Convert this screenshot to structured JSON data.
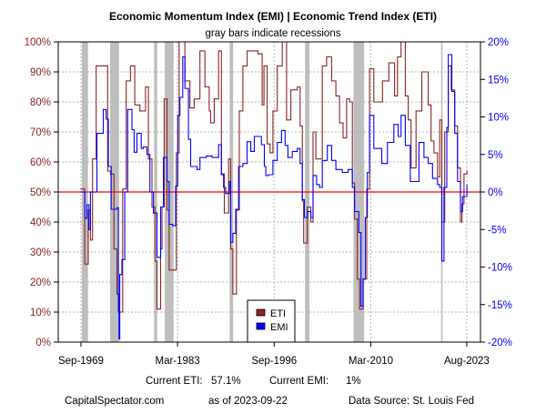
{
  "chart_data": {
    "type": "line",
    "title": "Economic Momentum Index (EMI) | Economic Trend Index (ETI)",
    "subtitle": "gray bars indicate recessions",
    "x_ticks": [
      {
        "label": "Sep-1969",
        "year": 1969.67
      },
      {
        "label": "Mar-1983",
        "year": 1983.17
      },
      {
        "label": "Sep-1996",
        "year": 1996.67
      },
      {
        "label": "Mar-2010",
        "year": 2010.17
      },
      {
        "label": "Aug-2023",
        "year": 2023.58
      }
    ],
    "xlim": [
      1966.5,
      2025.5
    ],
    "y_left": {
      "range": [
        0,
        100
      ],
      "ticks": [
        "0%",
        "10%",
        "20%",
        "30%",
        "40%",
        "50%",
        "60%",
        "70%",
        "80%",
        "90%",
        "100%"
      ],
      "series": "ETI"
    },
    "y_right": {
      "range": [
        -20,
        20
      ],
      "ticks": [
        "-20%",
        "-15%",
        "-10%",
        "-5%",
        "0%",
        "5%",
        "10%",
        "15%",
        "20%"
      ],
      "series": "EMI"
    },
    "reference_line": {
      "left_value": 50,
      "right_value": 0,
      "color": "#FF0000"
    },
    "grid": true,
    "legend": {
      "placement": "bottom-center",
      "entries": [
        {
          "name": "ETI",
          "color": "#8B2323"
        },
        {
          "name": "EMI",
          "color": "#0000FF"
        }
      ]
    },
    "recessions": [
      [
        1969.8,
        1970.66
      ],
      [
        1973.75,
        1975.0
      ],
      [
        1979.9,
        1980.33
      ],
      [
        1981.39,
        1982.62
      ],
      [
        1990.46,
        1990.93
      ],
      [
        2000.98,
        2001.6
      ],
      [
        2007.76,
        2009.25
      ],
      [
        2020.0,
        2020.2
      ]
    ],
    "recession_color": "#BEBEBE",
    "series": [
      {
        "name": "ETI",
        "axis": "left",
        "color": "#8B2323",
        "x_unit": "year",
        "points": [
          [
            1969.6,
            51
          ],
          [
            1970.2,
            26
          ],
          [
            1970.7,
            44
          ],
          [
            1971.0,
            34
          ],
          [
            1971.3,
            61
          ],
          [
            1971.8,
            92
          ],
          [
            1973.0,
            92
          ],
          [
            1973.4,
            57
          ],
          [
            1973.8,
            56
          ],
          [
            1974.3,
            31
          ],
          [
            1974.7,
            16
          ],
          [
            1975.0,
            10
          ],
          [
            1975.5,
            51
          ],
          [
            1976.0,
            87
          ],
          [
            1976.6,
            92
          ],
          [
            1977.2,
            79
          ],
          [
            1977.9,
            77
          ],
          [
            1978.5,
            77
          ],
          [
            1978.7,
            85
          ],
          [
            1979.1,
            61
          ],
          [
            1979.6,
            45
          ],
          [
            1980.0,
            27
          ],
          [
            1980.3,
            11
          ],
          [
            1980.8,
            31
          ],
          [
            1981.0,
            45
          ],
          [
            1981.3,
            81
          ],
          [
            1981.7,
            44
          ],
          [
            1982.0,
            24
          ],
          [
            1982.5,
            24
          ],
          [
            1983.0,
            63
          ],
          [
            1983.4,
            100
          ],
          [
            1984.2,
            87
          ],
          [
            1984.9,
            78
          ],
          [
            1985.5,
            81
          ],
          [
            1986.3,
            97
          ],
          [
            1987.0,
            85
          ],
          [
            1987.6,
            77
          ],
          [
            1987.8,
            73
          ],
          [
            1988.3,
            81
          ],
          [
            1988.9,
            97
          ],
          [
            1989.3,
            56
          ],
          [
            1989.7,
            43
          ],
          [
            1990.3,
            61
          ],
          [
            1990.6,
            31
          ],
          [
            1990.9,
            16
          ],
          [
            1991.4,
            44
          ],
          [
            1991.8,
            77
          ],
          [
            1992.3,
            92
          ],
          [
            1992.9,
            97
          ],
          [
            1994.4,
            96
          ],
          [
            1995.0,
            79
          ],
          [
            1995.25,
            92
          ],
          [
            1995.7,
            66
          ],
          [
            1996.1,
            63
          ],
          [
            1996.5,
            77
          ],
          [
            1997.1,
            92
          ],
          [
            1997.8,
            100
          ],
          [
            1998.4,
            74
          ],
          [
            1999.0,
            84
          ],
          [
            1999.9,
            85
          ],
          [
            2000.3,
            72
          ],
          [
            2000.6,
            47
          ],
          [
            2000.8,
            33
          ],
          [
            2001.3,
            45
          ],
          [
            2001.8,
            40
          ],
          [
            2002.1,
            70
          ],
          [
            2002.5,
            61
          ],
          [
            2003.0,
            61
          ],
          [
            2003.4,
            92
          ],
          [
            2004.0,
            95
          ],
          [
            2004.7,
            87
          ],
          [
            2005.3,
            82
          ],
          [
            2005.8,
            73
          ],
          [
            2006.3,
            68
          ],
          [
            2006.8,
            81
          ],
          [
            2007.2,
            80
          ],
          [
            2007.6,
            53
          ],
          [
            2007.9,
            41
          ],
          [
            2008.3,
            21
          ],
          [
            2008.6,
            11
          ],
          [
            2009.1,
            21
          ],
          [
            2009.6,
            51
          ],
          [
            2010.0,
            91
          ],
          [
            2010.6,
            80
          ],
          [
            2011.2,
            80
          ],
          [
            2011.8,
            87
          ],
          [
            2012.7,
            93
          ],
          [
            2013.5,
            82
          ],
          [
            2013.9,
            95
          ],
          [
            2014.4,
            100
          ],
          [
            2015.0,
            82
          ],
          [
            2015.4,
            74
          ],
          [
            2015.8,
            58
          ],
          [
            2016.5,
            77
          ],
          [
            2017.3,
            90
          ],
          [
            2018.2,
            79
          ],
          [
            2018.6,
            67
          ],
          [
            2019.0,
            63
          ],
          [
            2019.5,
            55
          ],
          [
            2019.8,
            74
          ],
          [
            2020.1,
            40
          ],
          [
            2020.5,
            70
          ],
          [
            2021.0,
            92
          ],
          [
            2021.4,
            84
          ],
          [
            2021.9,
            72
          ],
          [
            2022.3,
            58
          ],
          [
            2022.7,
            40
          ],
          [
            2022.9,
            46
          ],
          [
            2023.2,
            56
          ],
          [
            2023.6,
            57.1
          ]
        ]
      },
      {
        "name": "EMI",
        "axis": "right",
        "color": "#0000FF",
        "x_unit": "year",
        "points": [
          [
            1969.6,
            0
          ],
          [
            1970.2,
            -3.5
          ],
          [
            1970.5,
            -1.7
          ],
          [
            1970.8,
            -5
          ],
          [
            1971.0,
            0
          ],
          [
            1971.9,
            7.8
          ],
          [
            1972.3,
            7.8
          ],
          [
            1972.8,
            11
          ],
          [
            1973.2,
            9.7
          ],
          [
            1973.5,
            3.4
          ],
          [
            1973.9,
            -2.3
          ],
          [
            1974.7,
            -2.1
          ],
          [
            1974.9,
            -16
          ],
          [
            1975.0,
            -19.6
          ],
          [
            1975.1,
            -11
          ],
          [
            1975.4,
            -9
          ],
          [
            1975.8,
            0
          ],
          [
            1976.2,
            11
          ],
          [
            1976.8,
            8.3
          ],
          [
            1977.1,
            5.3
          ],
          [
            1977.5,
            7.8
          ],
          [
            1978.1,
            5.8
          ],
          [
            1978.4,
            6
          ],
          [
            1978.9,
            5
          ],
          [
            1979.3,
            0
          ],
          [
            1979.8,
            -2.8
          ],
          [
            1980.3,
            -8.7
          ],
          [
            1980.8,
            -2
          ],
          [
            1981.2,
            4.6
          ],
          [
            1981.4,
            4.6
          ],
          [
            1981.7,
            1.4
          ],
          [
            1982.0,
            -4.3
          ],
          [
            1982.5,
            -4.5
          ],
          [
            1982.9,
            0.8
          ],
          [
            1983.2,
            10.2
          ],
          [
            1983.5,
            12.6
          ],
          [
            1983.9,
            18
          ],
          [
            1984.2,
            13.8
          ],
          [
            1984.7,
            7
          ],
          [
            1985.0,
            3.4
          ],
          [
            1985.5,
            3.4
          ],
          [
            1985.9,
            3
          ],
          [
            1986.3,
            4.6
          ],
          [
            1987.2,
            4.8
          ],
          [
            1988.0,
            4.6
          ],
          [
            1988.9,
            6.3
          ],
          [
            1989.3,
            2.3
          ],
          [
            1989.6,
            0.6
          ],
          [
            1989.9,
            -0.2
          ],
          [
            1990.4,
            1.4
          ],
          [
            1990.6,
            -6.7
          ],
          [
            1990.9,
            -5.5
          ],
          [
            1991.3,
            -2.3
          ],
          [
            1991.7,
            3.4
          ],
          [
            1992.3,
            3.8
          ],
          [
            1992.9,
            6.7
          ],
          [
            1993.4,
            5.4
          ],
          [
            1993.9,
            7.4
          ],
          [
            1994.9,
            6.3
          ],
          [
            1995.3,
            3.4
          ],
          [
            1995.5,
            2.2
          ],
          [
            1995.9,
            2.3
          ],
          [
            1996.5,
            4.2
          ],
          [
            1997.1,
            6.6
          ],
          [
            1997.7,
            8.2
          ],
          [
            1998.2,
            6.2
          ],
          [
            1998.6,
            4.6
          ],
          [
            1999.2,
            5.4
          ],
          [
            1999.9,
            5.8
          ],
          [
            2000.3,
            3.8
          ],
          [
            2000.6,
            -1.0
          ],
          [
            2000.9,
            -3.4
          ],
          [
            2001.3,
            -2.6
          ],
          [
            2001.8,
            -3.4
          ],
          [
            2002.1,
            2.2
          ],
          [
            2002.6,
            1
          ],
          [
            2003.0,
            0.6
          ],
          [
            2003.4,
            4.2
          ],
          [
            2004.1,
            6.2
          ],
          [
            2004.7,
            4.2
          ],
          [
            2005.3,
            3
          ],
          [
            2006.2,
            2.6
          ],
          [
            2007.0,
            3
          ],
          [
            2007.6,
            0.6
          ],
          [
            2007.9,
            -2.6
          ],
          [
            2008.5,
            -5.4
          ],
          [
            2008.8,
            -15.2
          ],
          [
            2009.1,
            -11.6
          ],
          [
            2009.4,
            -3.4
          ],
          [
            2009.7,
            2.6
          ],
          [
            2010.0,
            10.2
          ],
          [
            2010.6,
            5.8
          ],
          [
            2011.2,
            5.8
          ],
          [
            2011.7,
            3.8
          ],
          [
            2012.5,
            6.6
          ],
          [
            2013.4,
            9
          ],
          [
            2014.0,
            7.4
          ],
          [
            2014.4,
            10.2
          ],
          [
            2015.0,
            6.2
          ],
          [
            2015.7,
            1.4
          ],
          [
            2016.1,
            1.4
          ],
          [
            2016.9,
            6.6
          ],
          [
            2017.6,
            4.6
          ],
          [
            2018.2,
            3.8
          ],
          [
            2018.8,
            1.8
          ],
          [
            2019.5,
            1
          ],
          [
            2019.8,
            0.6
          ],
          [
            2020.1,
            -9.2
          ],
          [
            2020.4,
            0.6
          ],
          [
            2020.8,
            8.6
          ],
          [
            2021.0,
            18.3
          ],
          [
            2021.5,
            13.4
          ],
          [
            2021.9,
            7.8
          ],
          [
            2022.3,
            1.4
          ],
          [
            2022.7,
            -2.6
          ],
          [
            2023.0,
            -0.6
          ],
          [
            2023.6,
            1
          ]
        ]
      }
    ]
  },
  "footer": {
    "current_eti_label": "Current ETI:",
    "current_eti_value": "57.1%",
    "current_emi_label": "Current EMI:",
    "current_emi_value": "1%",
    "site": "CapitalSpectator.com",
    "as_of": "as of 2023-09-22",
    "source": "Data Source: St. Louis Fed"
  }
}
